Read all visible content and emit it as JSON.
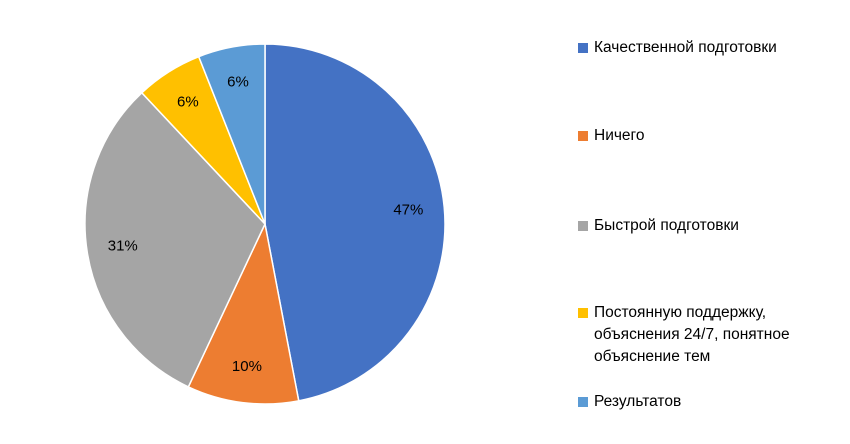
{
  "chart_data": {
    "type": "pie",
    "categories": [
      "Качественной подготовки",
      "Ничего",
      "Быстрой подготовки",
      "Постоянную поддержку, объяснения 24/7, понятное объяснение тем",
      "Результатов"
    ],
    "values": [
      47,
      10,
      31,
      6,
      6
    ],
    "value_labels": [
      "47%",
      "10%",
      "31%",
      "6%",
      "6%"
    ],
    "colors": [
      "#4472c4",
      "#ed7d31",
      "#a5a5a5",
      "#ffc000",
      "#5b9bd5"
    ],
    "legend": "right"
  }
}
